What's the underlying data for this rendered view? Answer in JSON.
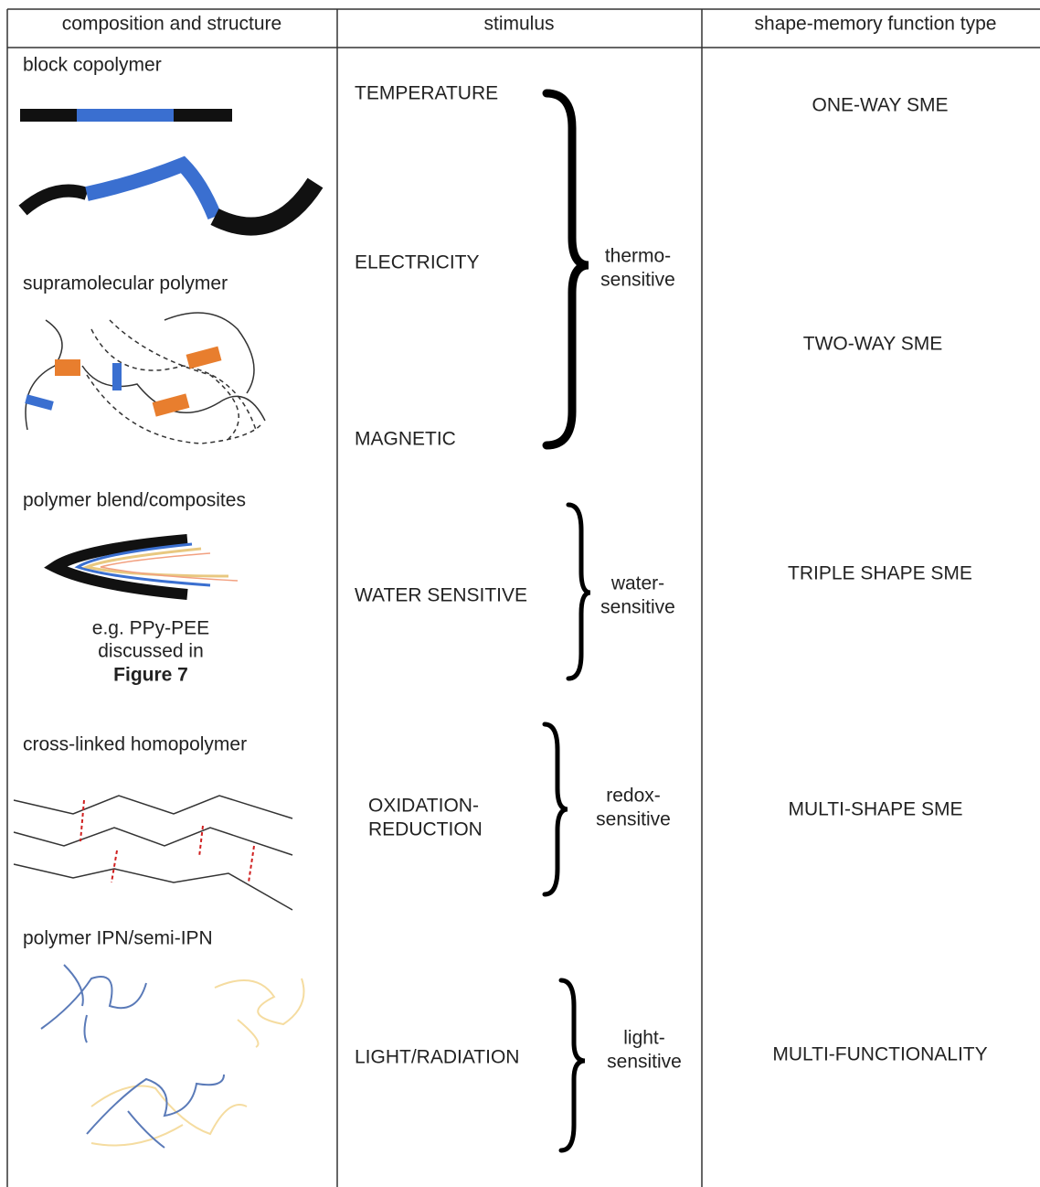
{
  "table": {
    "headers": [
      "composition and structure",
      "stimulus",
      "shape-memory function type"
    ],
    "structures": [
      "block copolymer",
      "supramolecular polymer",
      "polymer blend/composites",
      "cross-linked homopolymer",
      "polymer IPN/semi-IPN"
    ],
    "note": [
      "e.g. PPy-PEE",
      "discussed in",
      "Figure 7"
    ],
    "stimuli": [
      "TEMPERATURE",
      "ELECTRICITY",
      "MAGNETIC",
      "WATER SENSITIVE",
      "OXIDATION-",
      "REDUCTION",
      "LIGHT/RADIATION"
    ],
    "sensitivities": [
      [
        "thermo-",
        "sensitive"
      ],
      [
        "water-",
        "sensitive"
      ],
      [
        "redox-",
        "sensitive"
      ],
      [
        "light-",
        "sensitive"
      ]
    ],
    "function_types": [
      "ONE-WAY SME",
      "TWO-WAY SME",
      "TRIPLE SHAPE SME",
      "MULTI-SHAPE SME",
      "MULTI-FUNCTIONALITY"
    ]
  }
}
